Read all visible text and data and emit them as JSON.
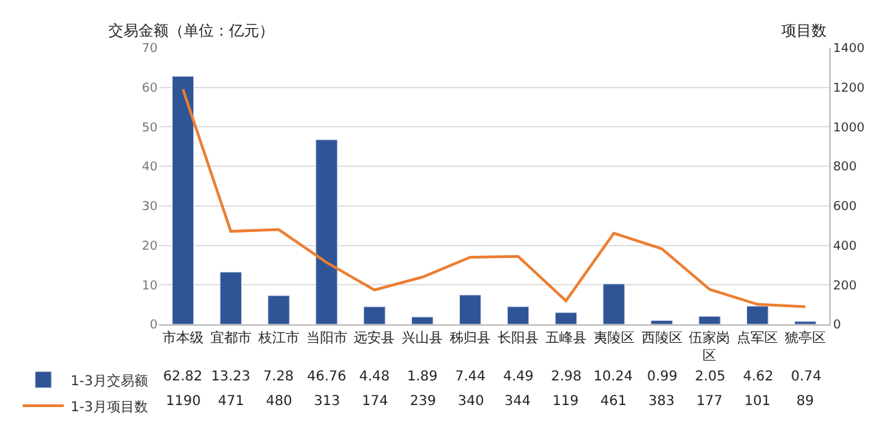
{
  "chart_data": {
    "type": "bar",
    "ylabel": "交易金额（单位：亿元）",
    "y2label": "项目数",
    "categories": [
      "市本级",
      "宜都市",
      "枝江市",
      "当阳市",
      "远安县",
      "兴山县",
      "秭归县",
      "长阳县",
      "五峰县",
      "夷陵区",
      "西陵区",
      "伍家岗区",
      "点军区",
      "猇亭区"
    ],
    "series": [
      {
        "name": "1-3月交易额",
        "color": "#2f5597",
        "values": [
          62.82,
          13.23,
          7.28,
          46.76,
          4.48,
          1.89,
          7.44,
          4.49,
          2.98,
          10.24,
          0.99,
          2.05,
          4.62,
          0.74
        ]
      },
      {
        "name": "1-3月项目数",
        "type": "line",
        "axis": "y2",
        "color": "#ed7d31",
        "values": [
          1190,
          471,
          480,
          313,
          174,
          239,
          340,
          344,
          119,
          461,
          383,
          177,
          101,
          89
        ]
      }
    ],
    "ylim": [
      0,
      70
    ],
    "yticks": [
      0,
      10,
      20,
      30,
      40,
      50,
      60,
      70
    ],
    "y2lim": [
      0,
      1400
    ],
    "y2ticks": [
      0,
      200,
      400,
      600,
      800,
      1000,
      1200,
      1400
    ],
    "grid": "y",
    "legend": "bottom left",
    "marker": "none",
    "data_labels": true
  }
}
